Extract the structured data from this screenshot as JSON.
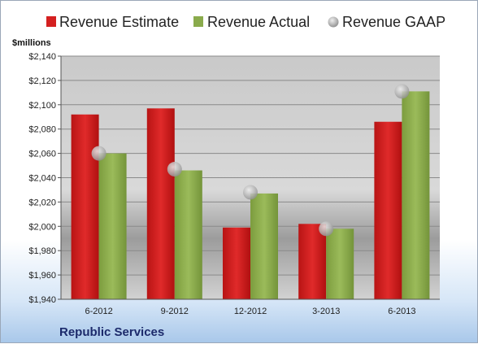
{
  "chart_data": {
    "type": "bar",
    "unit_label": "$millions",
    "company": "Republic Services",
    "categories": [
      "6-2012",
      "9-2012",
      "12-2012",
      "3-2013",
      "6-2013"
    ],
    "series": [
      {
        "name": "Revenue Estimate",
        "type": "bar",
        "color": "#d42020",
        "values": [
          2092,
          2097,
          1999,
          2002,
          2086
        ]
      },
      {
        "name": "Revenue Actual",
        "type": "bar",
        "color": "#8aab4c",
        "values": [
          2060,
          2046,
          2027,
          1998,
          2111
        ]
      },
      {
        "name": "Revenue GAAP",
        "type": "point",
        "color": "#b8b8b8",
        "values": [
          2060,
          2047,
          2028,
          1998,
          2111
        ]
      }
    ],
    "ylim": [
      1940,
      2140
    ],
    "yticks": [
      1940,
      1960,
      1980,
      2000,
      2020,
      2040,
      2060,
      2080,
      2100,
      2120,
      2140
    ],
    "ytick_labels": [
      "$1,940",
      "$1,960",
      "$1,980",
      "$2,000",
      "$2,020",
      "$2,040",
      "$2,060",
      "$2,080",
      "$2,100",
      "$2,120",
      "$2,140"
    ],
    "grid": true,
    "legend_position": "top"
  }
}
